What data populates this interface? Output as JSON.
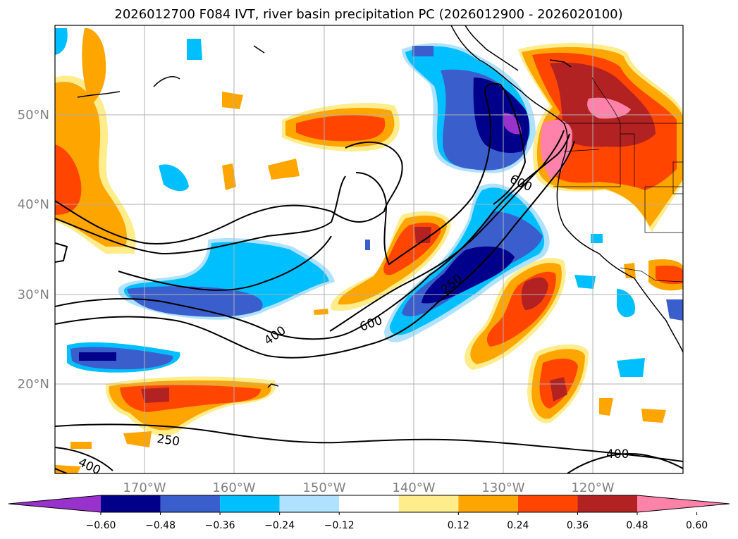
{
  "title": "2026012700 F084 IVT, river basin precipitation PC (2026012900 - 2026020100)",
  "lat_labels": [
    "50°N",
    "40°N",
    "30°N",
    "20°N"
  ],
  "lon_labels": [
    "170°W",
    "160°W",
    "150°W",
    "140°W",
    "130°W",
    "120°W"
  ],
  "contour_labels": [
    "600",
    "400",
    "600",
    "250",
    "250",
    "400",
    "400"
  ],
  "colorbar": {
    "tick_labels": [
      "−0.60",
      "−0.48",
      "−0.36",
      "−0.24",
      "−0.12",
      "0.12",
      "0.24",
      "0.36",
      "0.48",
      "0.60"
    ],
    "colors": [
      "#9932cc",
      "#00008b",
      "#3a5fcd",
      "#00bfff",
      "#b0e2ff",
      "#ffffff",
      "#ffec8b",
      "#ffa500",
      "#ff4500",
      "#b22222",
      "#ff82ab"
    ]
  }
}
